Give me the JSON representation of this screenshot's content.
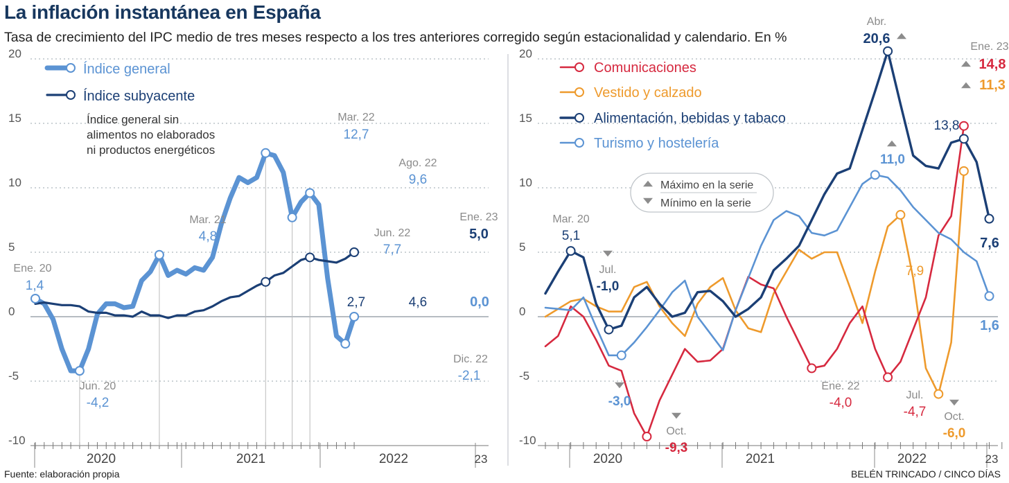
{
  "header": {
    "title": "La inflación instantánea en España",
    "subtitle": "Tasa de crecimiento del IPC medio de tres meses respecto a los tres anteriores corregido según estacionalidad y calendario. En %"
  },
  "footer": {
    "source": "Fuente: elaboración propia",
    "credit": "BELÉN TRINCADO / CINCO DÍAS"
  },
  "chart_data": [
    {
      "type": "line",
      "title": "",
      "ylim": [
        -10,
        20
      ],
      "yticks": [
        "20",
        "15",
        "10",
        "5",
        "0",
        "-5",
        "-10"
      ],
      "x_range": "2020-01 to 2023-01 (monthly)",
      "year_labels": [
        "2020",
        "2021",
        "2022",
        "23"
      ],
      "note": "Índice general sin alimentos no elaborados ni productos energéticos",
      "series": [
        {
          "name": "Índice general",
          "color": "#5b93d3",
          "values": [
            1.4,
            1.0,
            -0.2,
            -2.5,
            -4.2,
            -4.2,
            -2.5,
            0.2,
            1.0,
            1.0,
            0.7,
            0.8,
            2.8,
            3.5,
            4.8,
            3.2,
            3.6,
            3.3,
            3.8,
            3.6,
            4.6,
            7.2,
            9.2,
            10.8,
            10.4,
            10.8,
            12.7,
            12.5,
            11.2,
            7.7,
            8.9,
            9.6,
            8.7,
            3.0,
            -1.5,
            -2.1,
            0.0
          ]
        },
        {
          "name": "Índice subyacente",
          "color": "#1b3f75",
          "values": [
            1.0,
            1.1,
            1.0,
            0.9,
            0.9,
            0.8,
            0.4,
            0.3,
            0.3,
            0.1,
            0.1,
            0.0,
            0.4,
            0.1,
            0.1,
            -0.1,
            0.1,
            0.1,
            0.4,
            0.5,
            0.8,
            1.2,
            1.5,
            1.6,
            2.0,
            2.4,
            2.7,
            3.2,
            3.4,
            3.9,
            4.4,
            4.6,
            4.4,
            4.3,
            4.2,
            4.5,
            5.0
          ]
        }
      ],
      "annotations": [
        {
          "date": "Ene. 20",
          "value": "1,4"
        },
        {
          "date": "Jun. 20",
          "value": "-4,2"
        },
        {
          "date": "Mar. 21",
          "value": "4,8"
        },
        {
          "date": "Mar. 22",
          "value": "12,7"
        },
        {
          "date": "Jun. 22",
          "value": "7,7"
        },
        {
          "date": "Ago. 22",
          "value": "9,6"
        },
        {
          "date": "Dic. 22",
          "value": "-2,1"
        },
        {
          "date": "Ene. 23",
          "value": "0,0"
        },
        {
          "date": "Ene. 23",
          "value": "5,0"
        },
        {
          "date": "",
          "value": "2,7"
        },
        {
          "date": "",
          "value": "4,6"
        }
      ]
    },
    {
      "type": "line",
      "title": "",
      "ylim": [
        -10,
        20
      ],
      "yticks": [
        "20",
        "15",
        "10",
        "5",
        "0",
        "-5",
        "-10"
      ],
      "x_range": "2019-10 to 2023-01 (monthly)",
      "year_labels": [
        "2020",
        "2021",
        "2022",
        "23"
      ],
      "legend_extra": {
        "max": "Máximo en la serie",
        "min": "Mínimo en la serie"
      },
      "series": [
        {
          "name": "Comunicaciones",
          "color": "#d6293f",
          "values": [
            -2.3,
            -1.5,
            0.8,
            0.0,
            -1.8,
            -3.8,
            -4.2,
            -7.5,
            -9.3,
            -6.5,
            -4.5,
            -2.5,
            -3.5,
            -3.4,
            -2.5,
            0.5,
            3.1,
            2.5,
            2.2,
            0.0,
            -2.0,
            -4.0,
            -3.8,
            -2.5,
            -0.5,
            0.8,
            -2.5,
            -4.7,
            -3.5,
            -1.0,
            1.5,
            6.3,
            7.8,
            14.8
          ]
        },
        {
          "name": "Vestido y calzado",
          "color": "#ee9a2c",
          "values": [
            0.0,
            0.6,
            1.2,
            1.4,
            0.8,
            0.4,
            0.4,
            2.3,
            2.7,
            0.8,
            -0.5,
            -1.5,
            1.0,
            2.3,
            3.0,
            0.5,
            -0.9,
            -1.2,
            1.8,
            3.5,
            5.2,
            4.5,
            5.0,
            5.0,
            2.3,
            -0.5,
            3.5,
            7.0,
            7.9,
            3.0,
            -4.0,
            -6.0,
            -2.0,
            11.3
          ]
        },
        {
          "name": "Alimentación, bebidas y tabaco",
          "color": "#1b3f75",
          "values": [
            1.8,
            3.5,
            5.1,
            4.6,
            1.0,
            -1.0,
            -0.7,
            1.5,
            2.3,
            1.0,
            0.0,
            0.3,
            1.9,
            2.0,
            1.2,
            0.0,
            0.6,
            1.5,
            3.6,
            4.5,
            5.5,
            7.5,
            9.5,
            11.1,
            11.5,
            14.5,
            17.5,
            20.6,
            16.5,
            12.5,
            11.7,
            11.5,
            13.5,
            13.8,
            12.0,
            7.6
          ]
        },
        {
          "name": "Turismo y hostelería",
          "color": "#5b93d3",
          "values": [
            0.7,
            0.6,
            0.5,
            1.5,
            -0.8,
            -3.0,
            -3.0,
            -2.0,
            -0.8,
            0.5,
            1.9,
            2.8,
            0.0,
            -1.3,
            -2.6,
            0.5,
            3.0,
            5.5,
            7.5,
            8.2,
            7.8,
            6.5,
            6.3,
            6.7,
            8.5,
            10.3,
            11.0,
            10.8,
            9.8,
            8.5,
            7.5,
            6.5,
            6.0,
            5.0,
            4.3,
            1.6
          ]
        }
      ],
      "annotations": [
        {
          "date": "Mar. 20",
          "value": "5,1",
          "series": "Alimentación, bebidas y tabaco"
        },
        {
          "date": "Jul.",
          "value": "-1,0",
          "series": "Alimentación, bebidas y tabaco",
          "kind": "min"
        },
        {
          "date": "",
          "value": "-3,0",
          "series": "Turismo y hostelería",
          "kind": "min"
        },
        {
          "date": "Oct.",
          "value": "-9,3",
          "series": "Comunicaciones",
          "kind": "min"
        },
        {
          "date": "Abr.",
          "value": "20,6",
          "series": "Alimentación, bebidas y tabaco",
          "kind": "max"
        },
        {
          "date": "",
          "value": "11,0",
          "series": "Turismo y hostelería",
          "kind": "max"
        },
        {
          "date": "Ene. 22",
          "value": "-4,0",
          "series": "Comunicaciones"
        },
        {
          "date": "Jul.",
          "value": "-4,7",
          "series": "Comunicaciones"
        },
        {
          "date": "",
          "value": "7,9",
          "series": "Vestido y calzado"
        },
        {
          "date": "Oct.",
          "value": "-6,0",
          "series": "Vestido y calzado",
          "kind": "min"
        },
        {
          "date": "",
          "value": "13,8",
          "series": "Alimentación, bebidas y tabaco"
        },
        {
          "date": "Ene. 23",
          "value": "14,8",
          "series": "Comunicaciones",
          "kind": "max"
        },
        {
          "date": "",
          "value": "11,3",
          "series": "Vestido y calzado",
          "kind": "max"
        },
        {
          "date": "",
          "value": "7,6",
          "series": "Alimentación, bebidas y tabaco"
        },
        {
          "date": "",
          "value": "1,6",
          "series": "Turismo y hostelería"
        }
      ]
    }
  ]
}
